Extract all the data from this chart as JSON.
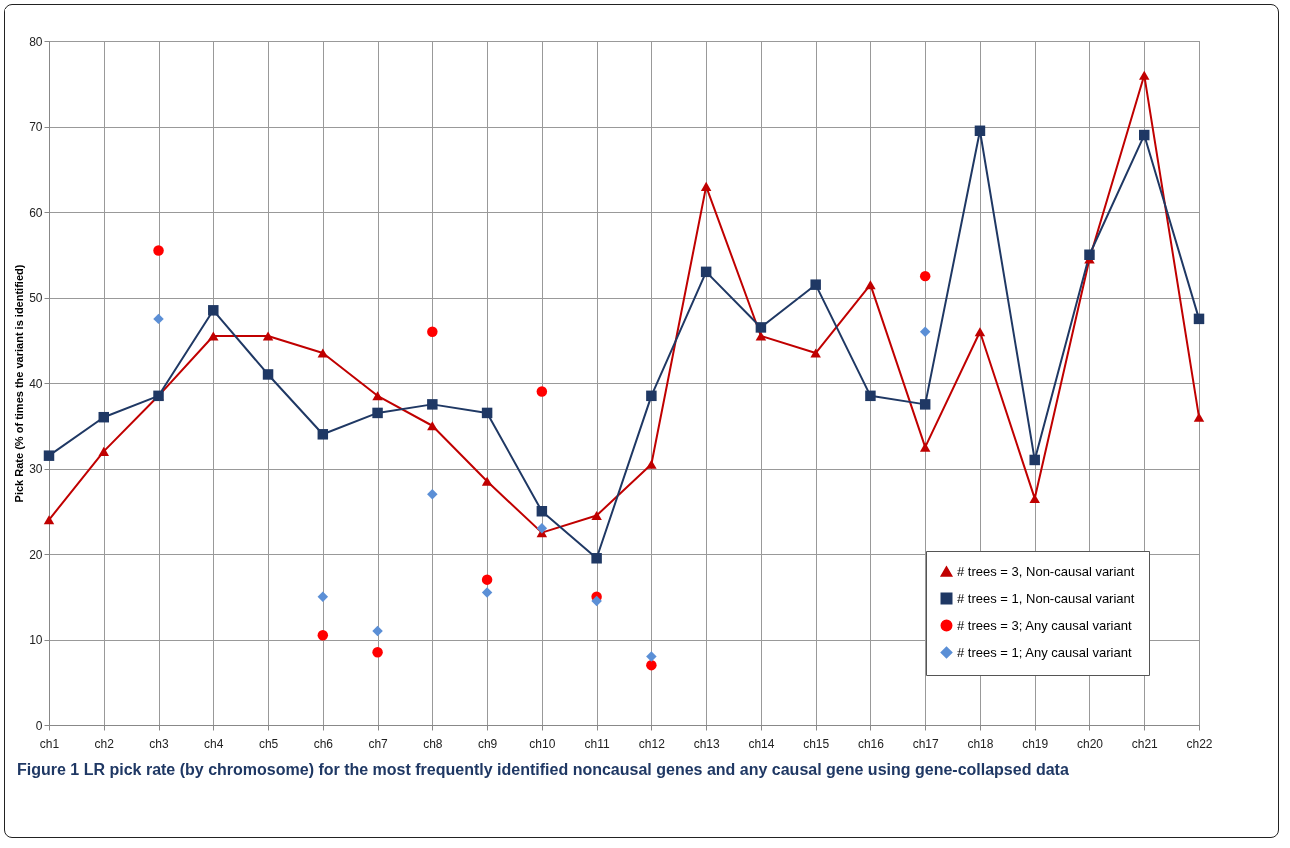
{
  "chart_data": {
    "type": "line",
    "ylabel": "Pick Rate (% of times the variant is identified)",
    "categories": [
      "ch1",
      "ch2",
      "ch3",
      "ch4",
      "ch5",
      "ch6",
      "ch7",
      "ch8",
      "ch9",
      "ch10",
      "ch11",
      "ch12",
      "ch13",
      "ch14",
      "ch15",
      "ch16",
      "ch17",
      "ch18",
      "ch19",
      "ch20",
      "ch21",
      "ch22"
    ],
    "ylim": [
      0,
      80
    ],
    "yticks": [
      0,
      10,
      20,
      30,
      40,
      50,
      60,
      70,
      80
    ],
    "grid": true,
    "legend": "bottom right",
    "series": [
      {
        "name": "# trees = 3, Non-causal variant",
        "marker": "triangle",
        "color": "#c00000",
        "values": [
          24,
          32,
          38.5,
          45.5,
          45.5,
          43.5,
          38.5,
          35,
          28.5,
          22.5,
          24.5,
          30.5,
          63,
          45.5,
          43.5,
          51.5,
          32.5,
          46,
          26.5,
          54.5,
          76,
          36
        ]
      },
      {
        "name": "# trees = 1, Non-causal variant",
        "marker": "square",
        "color": "#1f3864",
        "values": [
          31.5,
          36,
          38.5,
          48.5,
          41,
          34,
          36.5,
          37.5,
          36.5,
          25,
          19.5,
          38.5,
          53,
          46.5,
          51.5,
          38.5,
          37.5,
          69.5,
          31,
          55,
          69,
          47.5
        ]
      },
      {
        "name": "# trees = 3; Any causal variant",
        "type": "scatter",
        "marker": "circle",
        "color": "#ff0000",
        "values": [
          null,
          null,
          55.5,
          null,
          null,
          10.5,
          8.5,
          46,
          17,
          39,
          15,
          7,
          null,
          null,
          null,
          null,
          52.5,
          null,
          null,
          null,
          null,
          null
        ]
      },
      {
        "name": "# trees = 1; Any causal variant",
        "type": "scatter",
        "marker": "diamond",
        "color": "#5b8fd6",
        "values": [
          null,
          null,
          47.5,
          null,
          null,
          15,
          11,
          27,
          15.5,
          23,
          14.5,
          8,
          null,
          null,
          null,
          null,
          46,
          null,
          null,
          null,
          null,
          null
        ]
      }
    ],
    "annotations": [
      "Figure 1 LR pick rate (by chromosome) for the most frequently identified noncausal genes and any causal gene using gene-collapsed data"
    ]
  }
}
